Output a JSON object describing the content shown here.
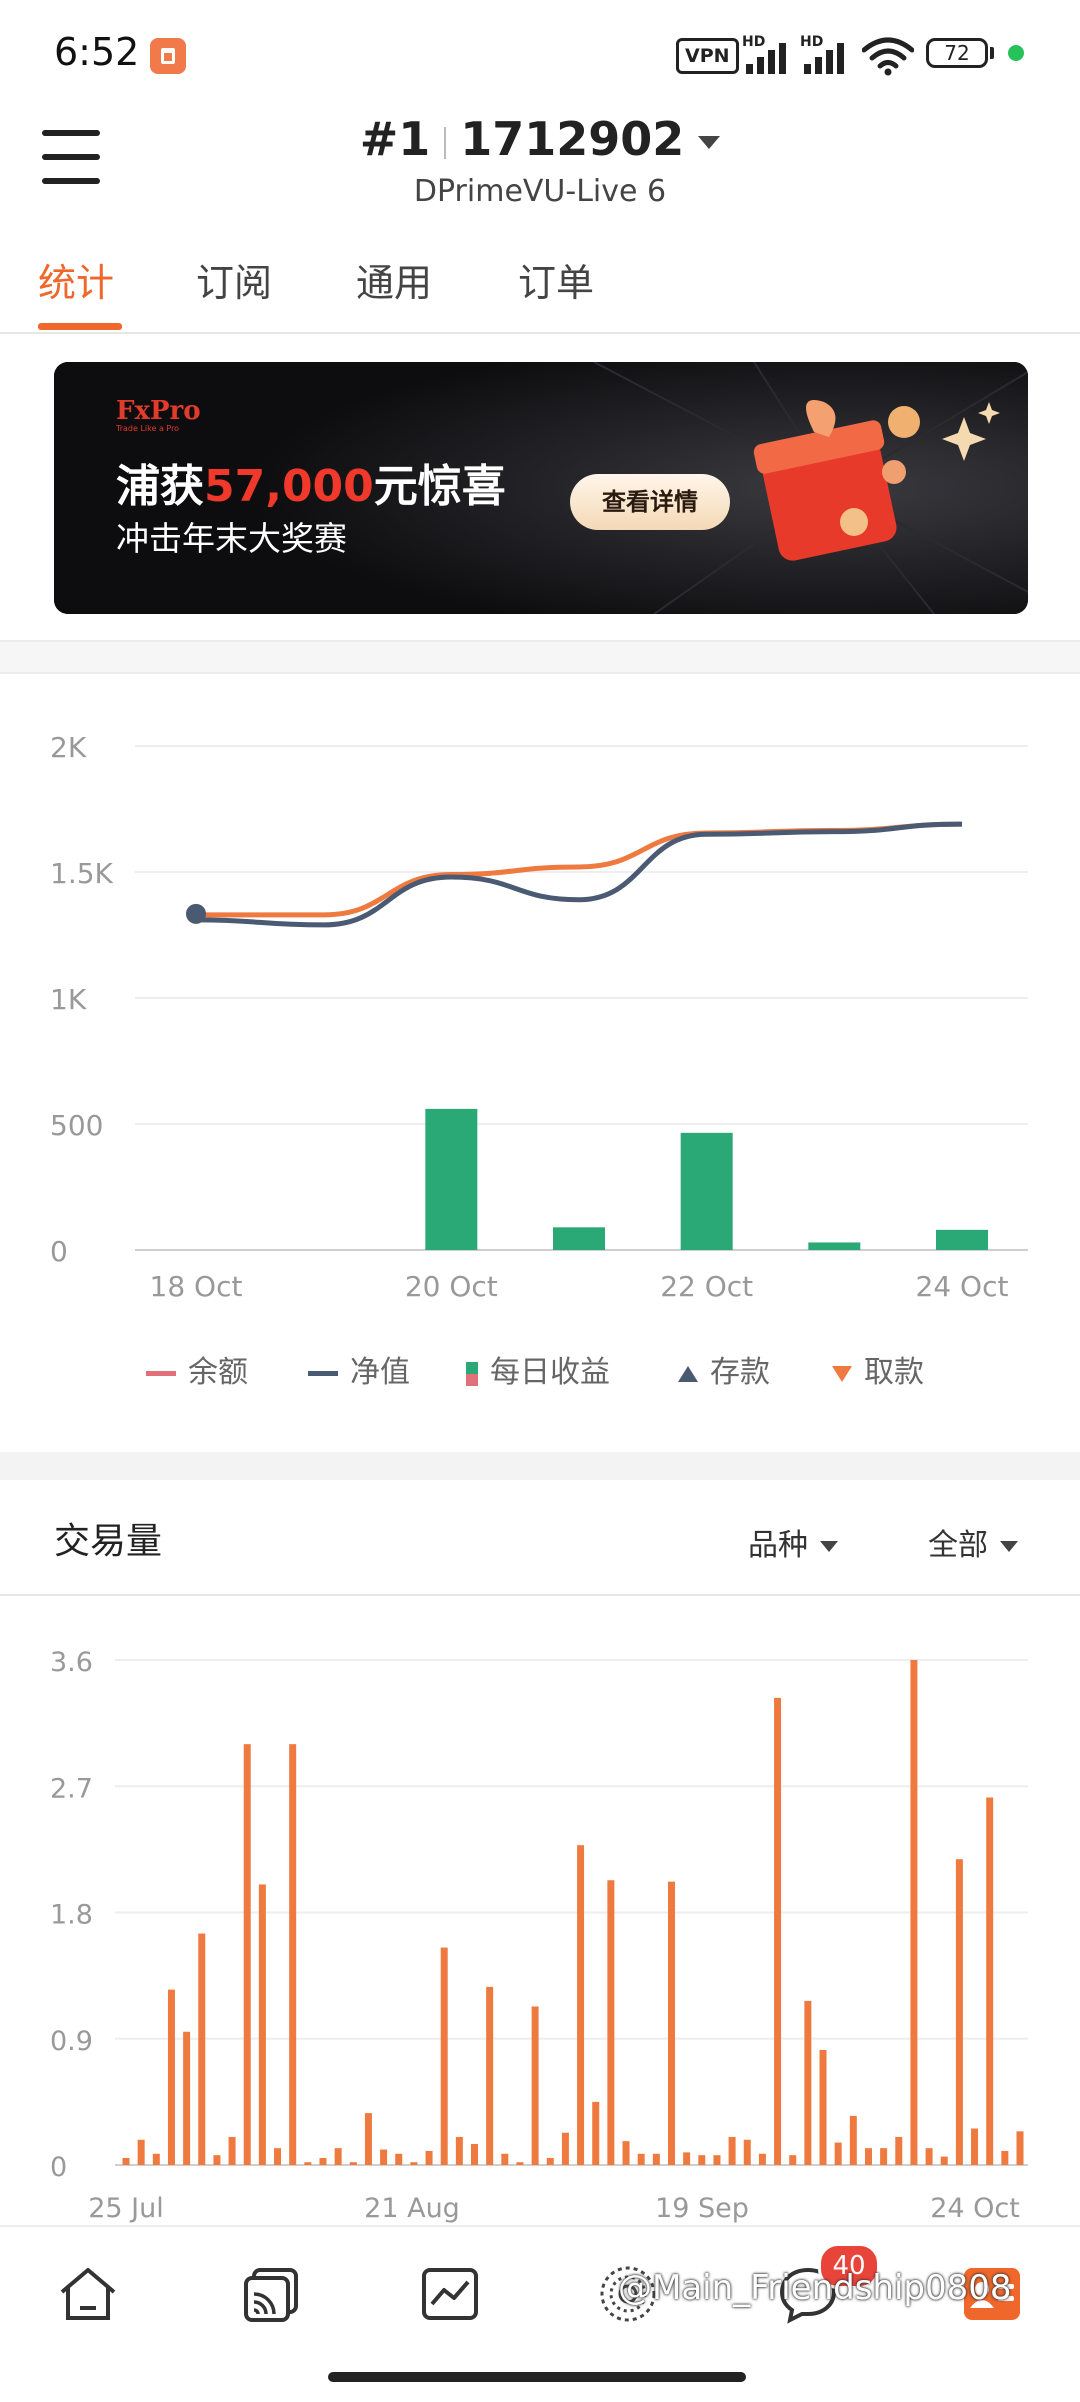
{
  "status_bar": {
    "time": "6:52",
    "vpn": "VPN",
    "hd": "HD",
    "battery": "72"
  },
  "header": {
    "account_prefix": "#1",
    "account_number": "1712902",
    "server": "DPrimeVU-Live 6"
  },
  "tabs": [
    {
      "label": "统计",
      "active": true
    },
    {
      "label": "订阅",
      "active": false
    },
    {
      "label": "通用",
      "active": false
    },
    {
      "label": "订单",
      "active": false
    }
  ],
  "banner": {
    "logo": "FxPro",
    "logo_tagline": "Trade Like a Pro",
    "headline_pre": "浦获",
    "headline_amount": "57,000",
    "headline_post": "元惊喜",
    "subline": "冲击年末大奖赛",
    "button": "查看详情"
  },
  "legend": [
    {
      "label": "余额",
      "color": "#e0707a"
    },
    {
      "label": "净值",
      "color": "#4a5a72"
    },
    {
      "label": "每日收益",
      "color": "#2aa876"
    },
    {
      "label": "存款",
      "color": "#4a5a72"
    },
    {
      "label": "取款",
      "color": "#ee7a40"
    }
  ],
  "volume": {
    "title": "交易量",
    "filter_symbol": "品种",
    "filter_all": "全部"
  },
  "nav": {
    "badge": "40",
    "watermark": "@Main_Friendship0808"
  },
  "chart_data": [
    {
      "type": "line",
      "title": "",
      "x": [
        "18 Oct",
        "19 Oct",
        "20 Oct",
        "21 Oct",
        "22 Oct",
        "23 Oct",
        "24 Oct"
      ],
      "ylim": [
        0,
        2000
      ],
      "yticks": [
        0,
        500,
        1000,
        1500,
        2000
      ],
      "ytick_labels": [
        "0",
        "500",
        "1K",
        "1.5K",
        "2K"
      ],
      "xtick_labels": [
        "18 Oct",
        "20 Oct",
        "22 Oct",
        "24 Oct"
      ],
      "series": [
        {
          "name": "余额",
          "type": "line",
          "color": "#ee7a40",
          "values": [
            1330,
            1330,
            1490,
            1520,
            1655,
            1665,
            1690
          ]
        },
        {
          "name": "净值",
          "type": "line",
          "color": "#4a5a72",
          "values": [
            1310,
            1290,
            1480,
            1390,
            1650,
            1660,
            1690
          ]
        },
        {
          "name": "每日收益",
          "type": "bar",
          "color": "#2aa876",
          "values": [
            0,
            0,
            560,
            90,
            465,
            30,
            80
          ]
        }
      ]
    },
    {
      "type": "bar",
      "title": "交易量",
      "ylim": [
        0,
        3.6
      ],
      "yticks": [
        0,
        0.9,
        1.8,
        2.7,
        3.6
      ],
      "ytick_labels": [
        "0",
        "0.9",
        "1.8",
        "2.7",
        "3.6"
      ],
      "xtick_labels": [
        "25 Jul",
        "21 Aug",
        "19 Sep",
        "24 Oct"
      ],
      "color": "#ee7a40",
      "values": [
        0.05,
        0.18,
        0.08,
        1.25,
        0.95,
        1.65,
        0.07,
        0.2,
        3.0,
        2.0,
        0.12,
        3.0,
        0.02,
        0.05,
        0.12,
        0.02,
        0.37,
        0.11,
        0.08,
        0.02,
        0.1,
        1.55,
        0.2,
        0.15,
        1.27,
        0.08,
        0.02,
        1.13,
        0.05,
        0.23,
        2.28,
        0.45,
        2.03,
        0.17,
        0.08,
        0.08,
        2.02,
        0.09,
        0.07,
        0.07,
        0.2,
        0.18,
        0.08,
        3.33,
        0.07,
        1.17,
        0.82,
        0.16,
        0.35,
        0.12,
        0.12,
        0.2,
        3.6,
        0.12,
        0.06,
        2.18,
        0.26,
        2.62,
        0.1,
        0.24
      ]
    }
  ]
}
